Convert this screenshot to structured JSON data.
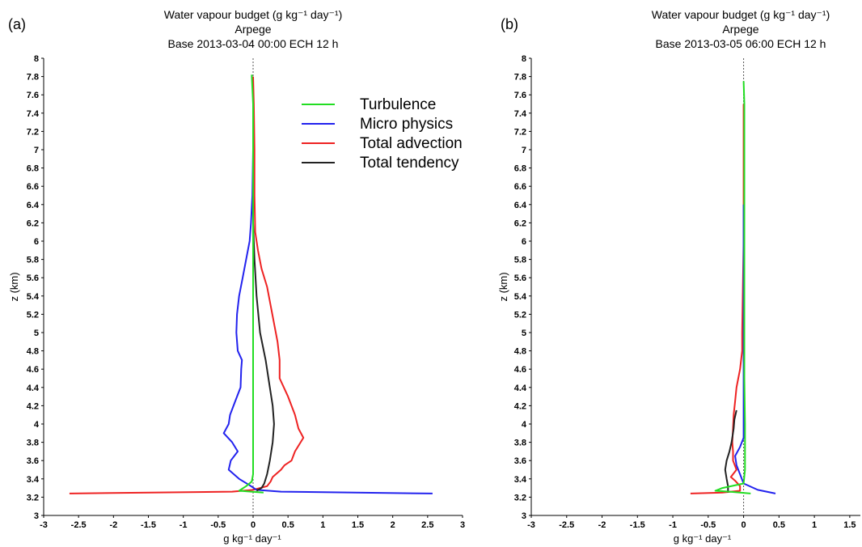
{
  "chart_data": [
    {
      "panel_label": "(a)",
      "type": "line",
      "title": [
        "Water vapour budget (g kg⁻¹ day⁻¹)",
        "Arpege",
        "Base 2013-03-04 00:00 ECH 12 h"
      ],
      "xlabel": "g kg⁻¹ day⁻¹",
      "ylabel": "z (km)",
      "xlim": [
        -3,
        3
      ],
      "ylim": [
        3,
        8
      ],
      "x_ticks": [
        -3,
        -2.5,
        -2,
        -1.5,
        -1,
        -0.5,
        0,
        0.5,
        1,
        1.5,
        2,
        2.5,
        3
      ],
      "y_ticks": [
        3,
        3.2,
        3.4,
        3.6,
        3.8,
        4,
        4.2,
        4.4,
        4.6,
        4.8,
        5,
        5.2,
        5.4,
        5.6,
        5.8,
        6,
        6.2,
        6.4,
        6.6,
        6.8,
        7,
        7.2,
        7.4,
        7.6,
        7.8,
        8
      ],
      "zero_line": "dotted",
      "legend": {
        "position": "top-right",
        "entries": [
          "Turbulence",
          "Micro physics",
          "Total advection",
          "Total tendency"
        ]
      },
      "series": [
        {
          "name": "Turbulence",
          "color": "#22dd22",
          "points": [
            [
              0.15,
              3.25
            ],
            [
              -0.2,
              3.27
            ],
            [
              -0.1,
              3.32
            ],
            [
              -0.02,
              3.37
            ],
            [
              0.0,
              3.45
            ],
            [
              0.0,
              3.6
            ],
            [
              0.0,
              3.8
            ],
            [
              0.0,
              4.0
            ],
            [
              0.0,
              4.2
            ],
            [
              0.0,
              4.5
            ],
            [
              0.0,
              5.0
            ],
            [
              0.0,
              5.5
            ],
            [
              0.0,
              6.0
            ],
            [
              0.0,
              6.5
            ],
            [
              0.0,
              7.0
            ],
            [
              0.0,
              7.5
            ],
            [
              -0.02,
              7.82
            ]
          ]
        },
        {
          "name": "Micro physics",
          "color": "#2222ee",
          "points": [
            [
              2.57,
              3.24
            ],
            [
              0.4,
              3.26
            ],
            [
              0.05,
              3.28
            ],
            [
              -0.05,
              3.33
            ],
            [
              -0.2,
              3.4
            ],
            [
              -0.35,
              3.5
            ],
            [
              -0.32,
              3.6
            ],
            [
              -0.22,
              3.7
            ],
            [
              -0.3,
              3.8
            ],
            [
              -0.42,
              3.9
            ],
            [
              -0.35,
              4.0
            ],
            [
              -0.33,
              4.1
            ],
            [
              -0.28,
              4.2
            ],
            [
              -0.23,
              4.3
            ],
            [
              -0.18,
              4.4
            ],
            [
              -0.17,
              4.6
            ],
            [
              -0.16,
              4.7
            ],
            [
              -0.22,
              4.8
            ],
            [
              -0.24,
              5.0
            ],
            [
              -0.23,
              5.2
            ],
            [
              -0.2,
              5.4
            ],
            [
              -0.15,
              5.6
            ],
            [
              -0.1,
              5.8
            ],
            [
              -0.05,
              6.0
            ],
            [
              -0.03,
              6.2
            ],
            [
              -0.01,
              6.5
            ],
            [
              0.0,
              7.0
            ]
          ]
        },
        {
          "name": "Total advection",
          "color": "#ee2222",
          "points": [
            [
              -2.63,
              3.24
            ],
            [
              -0.3,
              3.26
            ],
            [
              0.0,
              3.28
            ],
            [
              0.2,
              3.32
            ],
            [
              0.25,
              3.37
            ],
            [
              0.28,
              3.42
            ],
            [
              0.4,
              3.5
            ],
            [
              0.45,
              3.55
            ],
            [
              0.55,
              3.6
            ],
            [
              0.6,
              3.7
            ],
            [
              0.72,
              3.85
            ],
            [
              0.65,
              3.95
            ],
            [
              0.6,
              4.1
            ],
            [
              0.5,
              4.3
            ],
            [
              0.38,
              4.5
            ],
            [
              0.38,
              4.7
            ],
            [
              0.35,
              4.9
            ],
            [
              0.3,
              5.1
            ],
            [
              0.25,
              5.3
            ],
            [
              0.2,
              5.5
            ],
            [
              0.12,
              5.7
            ],
            [
              0.07,
              5.9
            ],
            [
              0.03,
              6.1
            ],
            [
              0.02,
              6.5
            ],
            [
              0.02,
              7.0
            ],
            [
              0.01,
              7.5
            ],
            [
              0.0,
              7.8
            ]
          ]
        },
        {
          "name": "Total tendency",
          "color": "#222222",
          "points": [
            [
              0.05,
              3.27
            ],
            [
              0.12,
              3.3
            ],
            [
              0.16,
              3.35
            ],
            [
              0.2,
              3.45
            ],
            [
              0.24,
              3.6
            ],
            [
              0.28,
              3.8
            ],
            [
              0.3,
              4.0
            ],
            [
              0.28,
              4.2
            ],
            [
              0.24,
              4.4
            ],
            [
              0.18,
              4.7
            ],
            [
              0.1,
              5.0
            ],
            [
              0.05,
              5.4
            ],
            [
              0.02,
              5.8
            ],
            [
              0.0,
              6.2
            ],
            [
              0.0,
              7.0
            ]
          ]
        }
      ]
    },
    {
      "panel_label": "(b)",
      "type": "line",
      "title": [
        "Water vapour budget (g kg⁻¹ day⁻¹)",
        "Arpege",
        "Base 2013-03-05 06:00 ECH 12 h"
      ],
      "xlabel": "g kg⁻¹ day⁻¹",
      "ylabel": "z (km)",
      "xlim": [
        -3,
        1.65
      ],
      "ylim": [
        3,
        8
      ],
      "x_ticks": [
        -3,
        -2.5,
        -2,
        -1.5,
        -1,
        -0.5,
        0,
        0.5,
        1,
        1.5
      ],
      "y_ticks": [
        3,
        3.2,
        3.4,
        3.6,
        3.8,
        4,
        4.2,
        4.4,
        4.6,
        4.8,
        5,
        5.2,
        5.4,
        5.6,
        5.8,
        6,
        6.2,
        6.4,
        6.6,
        6.8,
        7,
        7.2,
        7.4,
        7.6,
        7.8,
        8
      ],
      "zero_line": "dotted",
      "series": [
        {
          "name": "Turbulence",
          "color": "#22dd22",
          "points": [
            [
              0.1,
              3.24
            ],
            [
              -0.2,
              3.26
            ],
            [
              -0.4,
              3.27
            ],
            [
              -0.3,
              3.3
            ],
            [
              0.0,
              3.35
            ],
            [
              0.02,
              3.5
            ],
            [
              0.02,
              3.7
            ],
            [
              0.02,
              4.0
            ],
            [
              0.01,
              4.5
            ],
            [
              0.01,
              5.0
            ],
            [
              0.01,
              5.5
            ],
            [
              0.01,
              6.0
            ],
            [
              0.01,
              6.5
            ],
            [
              0.01,
              7.0
            ],
            [
              0.01,
              7.5
            ],
            [
              0.0,
              7.75
            ]
          ]
        },
        {
          "name": "Micro physics",
          "color": "#2222ee",
          "points": [
            [
              0.45,
              3.24
            ],
            [
              0.2,
              3.28
            ],
            [
              0.0,
              3.35
            ],
            [
              -0.05,
              3.45
            ],
            [
              -0.1,
              3.55
            ],
            [
              -0.12,
              3.65
            ],
            [
              -0.05,
              3.75
            ],
            [
              0.0,
              3.85
            ],
            [
              0.0,
              4.0
            ],
            [
              0.0,
              4.5
            ],
            [
              0.0,
              5.0
            ],
            [
              0.0,
              5.5
            ],
            [
              0.0,
              6.0
            ],
            [
              0.0,
              6.4
            ]
          ]
        },
        {
          "name": "Total advection",
          "color": "#ee2222",
          "points": [
            [
              -0.75,
              3.24
            ],
            [
              -0.3,
              3.25
            ],
            [
              -0.05,
              3.27
            ],
            [
              -0.05,
              3.32
            ],
            [
              -0.12,
              3.38
            ],
            [
              -0.18,
              3.42
            ],
            [
              -0.1,
              3.5
            ],
            [
              -0.15,
              3.6
            ],
            [
              -0.15,
              3.7
            ],
            [
              -0.16,
              3.8
            ],
            [
              -0.15,
              3.95
            ],
            [
              -0.14,
              4.1
            ],
            [
              -0.12,
              4.25
            ],
            [
              -0.1,
              4.4
            ],
            [
              -0.05,
              4.6
            ],
            [
              -0.02,
              4.8
            ],
            [
              -0.02,
              5.0
            ],
            [
              -0.01,
              5.5
            ],
            [
              0.0,
              6.0
            ],
            [
              0.0,
              6.5
            ],
            [
              0.0,
              7.0
            ],
            [
              0.0,
              7.5
            ]
          ]
        },
        {
          "name": "Total tendency",
          "color": "#222222",
          "points": [
            [
              -0.22,
              3.25
            ],
            [
              -0.22,
              3.32
            ],
            [
              -0.24,
              3.4
            ],
            [
              -0.26,
              3.5
            ],
            [
              -0.24,
              3.6
            ],
            [
              -0.2,
              3.7
            ],
            [
              -0.17,
              3.8
            ],
            [
              -0.14,
              3.95
            ],
            [
              -0.13,
              4.05
            ],
            [
              -0.1,
              4.15
            ]
          ]
        }
      ]
    }
  ]
}
